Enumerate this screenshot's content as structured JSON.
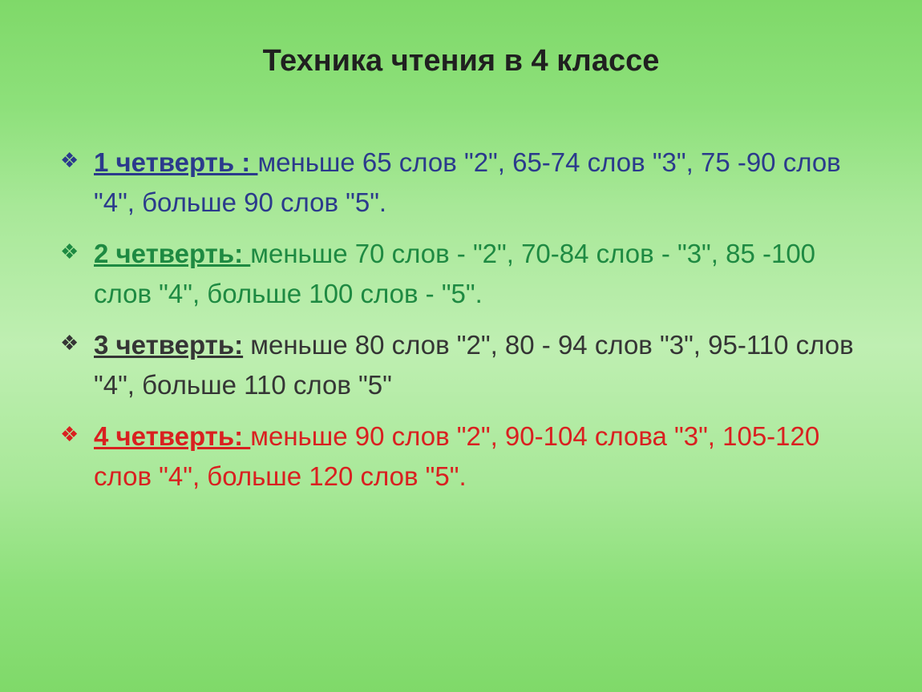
{
  "title": "Техника чтения в 4 классе",
  "quarters": [
    {
      "label": "1 четверть : ",
      "text": "меньше 65 слов \"2\",  65-74 слов \"3\", 75 -90 слов \"4\", больше 90 слов \"5\".",
      "color": "#2b3a8c"
    },
    {
      "label": "2 четверть: ",
      "text": "меньше 70 слов - \"2\", 70-84 слов - \"3\", 85 -100 слов \"4\", больше 100 слов - \"5\".",
      "color": "#1e8a42"
    },
    {
      "label": "3 четверть:",
      "text": " меньше 80 слов \"2\",  80 - 94 слов \"3\", 95-110 слов \"4\", больше 110 слов \"5\"",
      "color": "#353535"
    },
    {
      "label": "4 четверть: ",
      "text": "меньше 90 слов \"2\", 90-104 слова \"3\", 105-120 слов \"4\", больше 120 слов \"5\".",
      "color": "#d92020"
    }
  ],
  "styling": {
    "background_gradient": [
      "#7fd969",
      "#8de07a",
      "#a8e898",
      "#bfefb2"
    ],
    "title_fontsize": 38,
    "body_fontsize": 33,
    "title_color": "#202020",
    "bullet_glyph": "❖",
    "font_family": "Arial"
  }
}
